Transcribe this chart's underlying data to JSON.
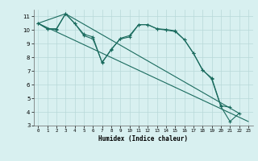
{
  "xlabel": "Humidex (Indice chaleur)",
  "ylabel": "",
  "xlim": [
    -0.5,
    23.5
  ],
  "ylim": [
    3,
    11.5
  ],
  "xticks": [
    0,
    1,
    2,
    3,
    4,
    5,
    6,
    7,
    8,
    9,
    10,
    11,
    12,
    13,
    14,
    15,
    16,
    17,
    18,
    19,
    20,
    21,
    22,
    23
  ],
  "yticks": [
    3,
    4,
    5,
    6,
    7,
    8,
    9,
    10,
    11
  ],
  "line_color": "#1a6b5e",
  "bg_color": "#d8f0f0",
  "grid_color": "#b8d8d8",
  "lines": [
    {
      "x": [
        0,
        1,
        2,
        3,
        4,
        5,
        6,
        7,
        8,
        9,
        10,
        11,
        12,
        13,
        14,
        15,
        16,
        17,
        18,
        19,
        20,
        21,
        22
      ],
      "y": [
        10.5,
        10.1,
        10.1,
        11.2,
        10.5,
        9.7,
        9.5,
        7.6,
        8.6,
        9.35,
        9.5,
        10.4,
        10.4,
        10.1,
        10.0,
        9.9,
        9.3,
        8.3,
        7.1,
        6.4,
        4.4,
        3.3,
        3.9
      ],
      "marker": true
    },
    {
      "x": [
        0,
        1,
        2,
        3,
        4,
        5,
        6,
        7,
        8,
        9,
        10,
        11,
        12,
        13,
        14,
        15,
        16,
        17,
        18,
        19,
        20,
        21
      ],
      "y": [
        10.5,
        10.1,
        10.05,
        11.2,
        10.5,
        9.6,
        9.35,
        7.65,
        8.55,
        9.4,
        9.6,
        10.4,
        10.4,
        10.1,
        10.05,
        9.95,
        9.3,
        8.3,
        7.05,
        6.5,
        4.45,
        4.35
      ],
      "marker": true
    },
    {
      "x": [
        0,
        3,
        22
      ],
      "y": [
        10.5,
        11.2,
        3.9
      ],
      "marker": false
    },
    {
      "x": [
        0,
        23
      ],
      "y": [
        10.5,
        3.3
      ],
      "marker": false
    }
  ]
}
